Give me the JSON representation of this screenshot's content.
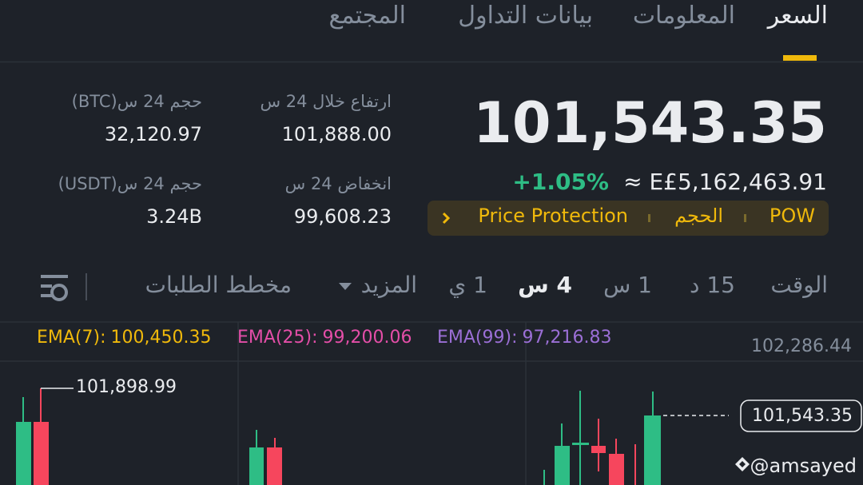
{
  "tabs": [
    {
      "label": "السعر",
      "active": true
    },
    {
      "label": "المعلومات",
      "active": false
    },
    {
      "label": "بيانات التداول",
      "active": false
    },
    {
      "label": "المجتمع",
      "active": false
    }
  ],
  "price": {
    "last": "101,543.35",
    "change": "+1.05%",
    "fiat": "≈ E£5,162,463.91"
  },
  "tags": [
    "POW",
    "الحجم",
    "Price Protection"
  ],
  "stats": [
    {
      "label": "ارتفاع خلال 24 س",
      "value": "101,888.00"
    },
    {
      "label": "حجم 24 س(BTC)",
      "value": "32,120.97"
    },
    {
      "label": "انخفاض 24 س",
      "value": "99,608.23"
    },
    {
      "label": "حجم 24 س(USDT)",
      "value": "3.24B"
    }
  ],
  "timeframes": [
    {
      "label": "الوقت",
      "active": false
    },
    {
      "label": "15 د",
      "active": false
    },
    {
      "label": "1 س",
      "active": false
    },
    {
      "label": "4 س",
      "active": true
    },
    {
      "label": "1 ي",
      "active": false
    },
    {
      "label": "المزيد",
      "active": false
    },
    {
      "label": "مخطط الطلبات",
      "active": false
    }
  ],
  "ema": [
    {
      "label": "EMA(7):",
      "value": "100,450.35",
      "color": "#f0b90b"
    },
    {
      "label": "EMA(25):",
      "value": "99,200.06",
      "color": "#e44ea8"
    },
    {
      "label": "EMA(99):",
      "value": "97,216.83",
      "color": "#9b6fd6"
    }
  ],
  "chart": {
    "axis_top": "102,286.44",
    "high_marker": "101,898.99",
    "last_marker": "101,543.35"
  },
  "watermark": "@amsayed"
}
